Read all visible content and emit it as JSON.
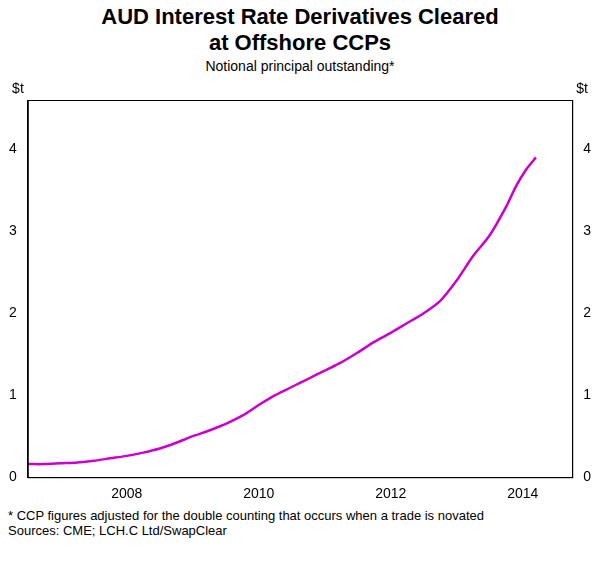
{
  "chart_data": {
    "type": "line",
    "title": [
      "AUD Interest Rate Derivatives Cleared",
      "at Offshore CCPs"
    ],
    "subtitle": "Notional principal outstanding*",
    "y_label": "$t",
    "footnote": "*    CCP figures adjusted for the double counting that occurs when a trade is novated",
    "sources": "Sources: CME; LCH.C Ltd/SwapClear",
    "x": [
      2006.5,
      2006.75,
      2007.0,
      2007.25,
      2007.5,
      2007.75,
      2008.0,
      2008.25,
      2008.5,
      2008.75,
      2009.0,
      2009.25,
      2009.5,
      2009.75,
      2010.0,
      2010.25,
      2010.5,
      2010.75,
      2011.0,
      2011.25,
      2011.5,
      2011.75,
      2012.0,
      2012.25,
      2012.5,
      2012.75,
      2013.0,
      2013.25,
      2013.5,
      2013.75,
      2013.9,
      2014.05,
      2014.2
    ],
    "values": [
      0.16,
      0.16,
      0.17,
      0.18,
      0.2,
      0.23,
      0.26,
      0.3,
      0.35,
      0.42,
      0.5,
      0.57,
      0.65,
      0.75,
      0.88,
      1.0,
      1.1,
      1.2,
      1.3,
      1.4,
      1.52,
      1.65,
      1.76,
      1.88,
      2.0,
      2.15,
      2.4,
      2.7,
      2.95,
      3.3,
      3.55,
      3.75,
      3.9
    ],
    "color": "#cc00cc",
    "xlim": [
      2006.5,
      2014.75
    ],
    "xticks": [
      2008,
      2010,
      2012,
      2014
    ],
    "ylim": [
      0,
      4.6
    ],
    "yticks": [
      0,
      1,
      2,
      3,
      4
    ],
    "y2lim": [
      0,
      4.6
    ],
    "y2ticks": [
      0,
      1,
      2,
      3,
      4
    ],
    "grid": false
  }
}
